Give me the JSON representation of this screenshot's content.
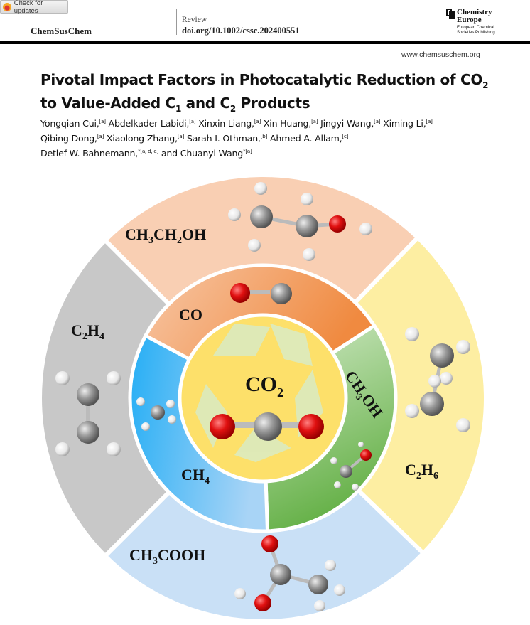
{
  "header": {
    "check_updates": "Check for updates",
    "journal": "ChemSusChem",
    "article_type": "Review",
    "doi": "doi.org/10.1002/cssc.202400551",
    "publisher_line1": "Chemistry",
    "publisher_line2": "Europe",
    "publisher_sub1": "European Chemical",
    "publisher_sub2": "Societies Publishing",
    "website": "www.chemsuschem.org"
  },
  "title": {
    "part1": "Pivotal Impact Factors in Photocatalytic Reduction of CO",
    "sub1": "2",
    "part2": "to Value-Added C",
    "sub2": "1",
    "part3": " and C",
    "sub3": "2",
    "part4": " Products"
  },
  "authors": [
    {
      "name": "Yongqian Cui,",
      "aff": "[a]"
    },
    {
      "name": "Abdelkader Labidi,",
      "aff": "[a]"
    },
    {
      "name": "Xinxin Liang,",
      "aff": "[a]"
    },
    {
      "name": "Xin Huang,",
      "aff": "[a]"
    },
    {
      "name": "Jingyi Wang,",
      "aff": "[a]"
    },
    {
      "name": "Ximing Li,",
      "aff": "[a]"
    },
    {
      "name": "Qibing Dong,",
      "aff": "[a]"
    },
    {
      "name": "Xiaolong Zhang,",
      "aff": "[a]"
    },
    {
      "name": "Sarah I. Othman,",
      "aff": "[b]"
    },
    {
      "name": "Ahmed A. Allam,",
      "aff": "[c]"
    },
    {
      "name": "Detlef W. Bahnemann,",
      "aff": "*[a, d, e]"
    },
    {
      "name": "and Chuanyi Wang",
      "aff": "*[a]"
    }
  ],
  "figure": {
    "center": {
      "main": "CO",
      "sub": "2"
    },
    "inner": [
      {
        "main": "CO",
        "color": "#f2a070"
      },
      {
        "main": "CH",
        "sub": "3",
        "tail": "OH",
        "color": "#9fd08a"
      },
      {
        "main": "CH",
        "sub": "4",
        "color": "#4ab6f0"
      }
    ],
    "outer": [
      {
        "main": "CH",
        "sub": "3",
        "mid": "CH",
        "sub2": "2",
        "tail": "OH",
        "color": "#f9cfb3"
      },
      {
        "main": "C",
        "sub": "2",
        "mid": "H",
        "sub2": "6",
        "color": "#fdeea2"
      },
      {
        "main": "CH",
        "sub": "3",
        "tail": "COOH",
        "color": "#c9e0f6"
      },
      {
        "main": "C",
        "sub": "2",
        "mid": "H",
        "sub2": "4",
        "color": "#c8c8c8"
      }
    ]
  }
}
